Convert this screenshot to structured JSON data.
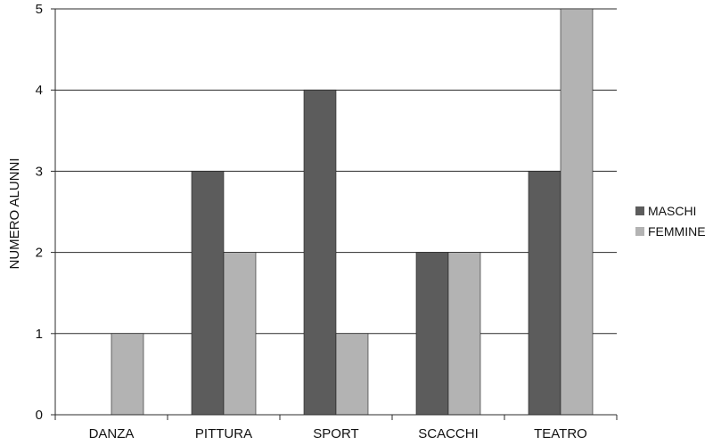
{
  "chart_data": {
    "type": "bar",
    "title": "",
    "xlabel": "",
    "ylabel": "NUMERO ALUNNI",
    "categories": [
      "DANZA",
      "PITTURA",
      "SPORT",
      "SCACCHI",
      "TEATRO"
    ],
    "series": [
      {
        "name": "MASCHI",
        "values": [
          0,
          3,
          4,
          2,
          3
        ],
        "color": "#5c5c5c"
      },
      {
        "name": "FEMMINE",
        "values": [
          1,
          2,
          1,
          2,
          5
        ],
        "color": "#b3b3b3"
      }
    ],
    "ylim": [
      0,
      5
    ],
    "yticks": [
      "0",
      "1",
      "2",
      "3",
      "4",
      "5"
    ],
    "grid": true,
    "legend": "right"
  }
}
